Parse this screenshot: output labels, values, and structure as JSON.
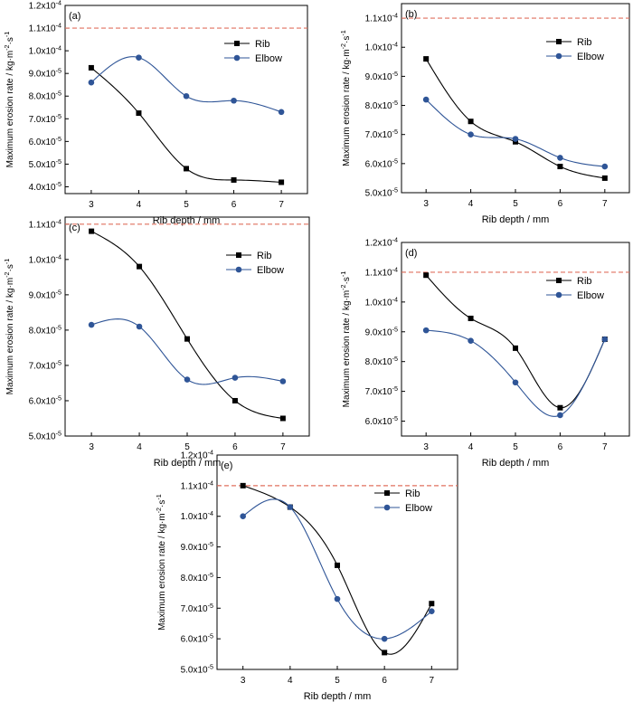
{
  "colors": {
    "rib": "#000000",
    "elbow": "#2f5597",
    "limit": "#e0705f"
  },
  "chart_data": [
    {
      "type": "line",
      "panel": "(a)",
      "xlabel": "Rib depth / mm",
      "ylabel": "Maximum erosion rate / kg·m⁻²·s⁻¹",
      "x": [
        3,
        4,
        5,
        6,
        7
      ],
      "ylim": [
        3.7e-05,
        0.00012
      ],
      "yticks": [
        4e-05,
        5e-05,
        6e-05,
        7e-05,
        8e-05,
        9e-05,
        0.0001,
        0.00011,
        0.00012
      ],
      "ytick_labels": [
        "4.0x10⁻⁵",
        "5.0x10⁻⁵",
        "6.0x10⁻⁵",
        "7.0x10⁻⁵",
        "8.0x10⁻⁵",
        "9.0x10⁻⁵",
        "1.0x10⁻⁴",
        "1.1x10⁻⁴",
        "1.2x10⁻⁴"
      ],
      "reference_line": 0.00011,
      "legend_loc": "upper-right",
      "series": [
        {
          "name": "Rib",
          "marker": "square",
          "values": [
            9.25e-05,
            7.25e-05,
            4.8e-05,
            4.3e-05,
            4.2e-05
          ]
        },
        {
          "name": "Elbow",
          "marker": "circle",
          "values": [
            8.6e-05,
            9.7e-05,
            8e-05,
            7.8e-05,
            7.3e-05
          ]
        }
      ]
    },
    {
      "type": "line",
      "panel": "(b)",
      "xlabel": "Rib depth / mm",
      "ylabel": "Maximum erosion rate / kg·m⁻²·s⁻¹",
      "x": [
        3,
        4,
        5,
        6,
        7
      ],
      "ylim": [
        5e-05,
        0.000115
      ],
      "yticks": [
        5e-05,
        6e-05,
        7e-05,
        8e-05,
        9e-05,
        0.0001,
        0.00011
      ],
      "ytick_labels": [
        "5.0x10⁻⁵",
        "6.0x10⁻⁵",
        "7.0x10⁻⁵",
        "8.0x10⁻⁵",
        "9.0x10⁻⁵",
        "1.0x10⁻⁴",
        "1.1x10⁻⁴"
      ],
      "reference_line": 0.00011,
      "legend_loc": "upper-right",
      "series": [
        {
          "name": "Rib",
          "marker": "square",
          "values": [
            9.6e-05,
            7.45e-05,
            6.75e-05,
            5.9e-05,
            5.5e-05
          ]
        },
        {
          "name": "Elbow",
          "marker": "circle",
          "values": [
            8.2e-05,
            7e-05,
            6.85e-05,
            6.2e-05,
            5.9e-05
          ]
        }
      ]
    },
    {
      "type": "line",
      "panel": "(c)",
      "xlabel": "Rib depth / mm",
      "ylabel": "Maximum erosion rate / kg·m⁻²·s⁻¹",
      "x": [
        3,
        4,
        5,
        6,
        7
      ],
      "ylim": [
        5e-05,
        0.000112
      ],
      "yticks": [
        5e-05,
        6e-05,
        7e-05,
        8e-05,
        9e-05,
        0.0001,
        0.00011
      ],
      "ytick_labels": [
        "5.0x10⁻⁵",
        "6.0x10⁻⁵",
        "7.0x10⁻⁵",
        "8.0x10⁻⁵",
        "9.0x10⁻⁵",
        "1.0x10⁻⁴",
        "1.1x10⁻⁴"
      ],
      "reference_line": 0.00011,
      "legend_loc": "upper-right",
      "series": [
        {
          "name": "Rib",
          "marker": "square",
          "values": [
            0.000108,
            9.8e-05,
            7.75e-05,
            6e-05,
            5.5e-05
          ]
        },
        {
          "name": "Elbow",
          "marker": "circle",
          "values": [
            8.15e-05,
            8.1e-05,
            6.6e-05,
            6.65e-05,
            6.55e-05
          ]
        }
      ]
    },
    {
      "type": "line",
      "panel": "(d)",
      "xlabel": "Rib depth / mm",
      "ylabel": "Maximum erosion rate / kg·m⁻²·s⁻¹",
      "x": [
        3,
        4,
        5,
        6,
        7
      ],
      "ylim": [
        5.5e-05,
        0.00012
      ],
      "yticks": [
        6e-05,
        7e-05,
        8e-05,
        9e-05,
        0.0001,
        0.00011,
        0.00012
      ],
      "ytick_labels": [
        "6.0x10⁻⁵",
        "7.0x10⁻⁵",
        "8.0x10⁻⁵",
        "9.0x10⁻⁵",
        "1.0x10⁻⁴",
        "1.1x10⁻⁴",
        "1.2x10⁻⁴"
      ],
      "reference_line": 0.00011,
      "legend_loc": "upper-right",
      "series": [
        {
          "name": "Rib",
          "marker": "square",
          "values": [
            0.000109,
            9.45e-05,
            8.45e-05,
            6.45e-05,
            8.75e-05
          ]
        },
        {
          "name": "Elbow",
          "marker": "circle",
          "values": [
            9.05e-05,
            8.7e-05,
            7.3e-05,
            6.2e-05,
            8.75e-05
          ]
        }
      ]
    },
    {
      "type": "line",
      "panel": "(e)",
      "xlabel": "Rib depth / mm",
      "ylabel": "Maximum erosion rate / kg·m⁻²·s⁻¹",
      "x": [
        3,
        4,
        5,
        6,
        7
      ],
      "ylim": [
        5e-05,
        0.00012
      ],
      "yticks": [
        5e-05,
        6e-05,
        7e-05,
        8e-05,
        9e-05,
        0.0001,
        0.00011,
        0.00012
      ],
      "ytick_labels": [
        "5.0x10⁻⁵",
        "6.0x10⁻⁵",
        "7.0x10⁻⁵",
        "8.0x10⁻⁵",
        "9.0x10⁻⁵",
        "1.0x10⁻⁴",
        "1.1x10⁻⁴",
        "1.2x10⁻⁴"
      ],
      "reference_line": 0.00011,
      "legend_loc": "upper-right",
      "series": [
        {
          "name": "Rib",
          "marker": "square",
          "values": [
            0.00011,
            0.000103,
            8.4e-05,
            5.55e-05,
            7.15e-05
          ]
        },
        {
          "name": "Elbow",
          "marker": "circle",
          "values": [
            0.0001,
            0.000103,
            7.3e-05,
            6e-05,
            6.9e-05
          ]
        }
      ]
    }
  ]
}
